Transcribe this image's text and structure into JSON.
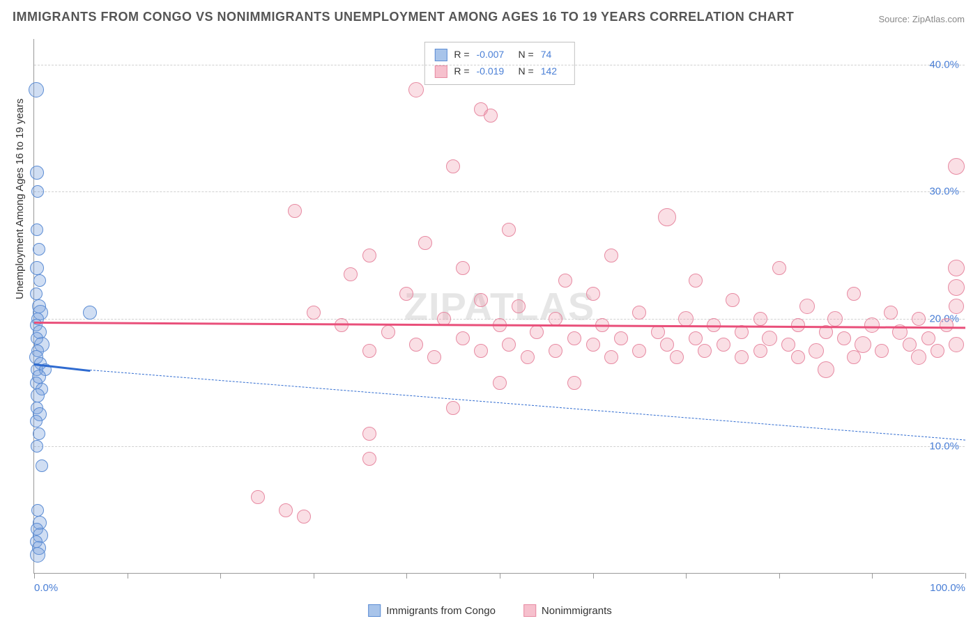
{
  "title": "IMMIGRANTS FROM CONGO VS NONIMMIGRANTS UNEMPLOYMENT AMONG AGES 16 TO 19 YEARS CORRELATION CHART",
  "source": "Source: ZipAtlas.com",
  "watermark": "ZIPATLAS",
  "y_axis_label": "Unemployment Among Ages 16 to 19 years",
  "chart": {
    "type": "scatter",
    "xlim": [
      0,
      100
    ],
    "ylim": [
      0,
      42
    ],
    "y_ticks": [
      10,
      20,
      30,
      40
    ],
    "y_tick_labels": [
      "10.0%",
      "20.0%",
      "30.0%",
      "40.0%"
    ],
    "x_ticks": [
      0,
      10,
      20,
      30,
      40,
      50,
      60,
      70,
      80,
      90,
      100
    ],
    "x_tick_labels_shown": {
      "0": "0.0%",
      "100": "100.0%"
    },
    "grid_color": "#d0d0d0",
    "background_color": "#ffffff",
    "axis_color": "#999999",
    "tick_label_color": "#4a7fd6",
    "tick_label_fontsize": 15,
    "title_fontsize": 18,
    "title_color": "#555555"
  },
  "series": [
    {
      "key": "congo",
      "label": "Immigrants from Congo",
      "fill": "rgba(120,160,220,0.35)",
      "stroke": "#5b8cd4",
      "swatch_fill": "#a8c4ea",
      "swatch_stroke": "#5b8cd4",
      "trend_color": "#2f6bd0",
      "trend_solid": {
        "x1": 0,
        "y1": 16.5,
        "x2": 6,
        "y2": 16.0
      },
      "trend_dash": {
        "x1": 6,
        "y1": 16.0,
        "x2": 100,
        "y2": 10.5
      },
      "R": "-0.007",
      "N": "74",
      "base_r": 9,
      "points": [
        {
          "x": 0.2,
          "y": 38,
          "r": 11
        },
        {
          "x": 0.3,
          "y": 31.5,
          "r": 10
        },
        {
          "x": 0.4,
          "y": 30,
          "r": 9
        },
        {
          "x": 0.3,
          "y": 27,
          "r": 9
        },
        {
          "x": 0.5,
          "y": 25.5,
          "r": 9
        },
        {
          "x": 0.3,
          "y": 24,
          "r": 10
        },
        {
          "x": 0.6,
          "y": 23,
          "r": 9
        },
        {
          "x": 0.2,
          "y": 22,
          "r": 9
        },
        {
          "x": 0.5,
          "y": 21,
          "r": 10
        },
        {
          "x": 0.7,
          "y": 20.5,
          "r": 11
        },
        {
          "x": 6.0,
          "y": 20.5,
          "r": 10
        },
        {
          "x": 0.4,
          "y": 20,
          "r": 9
        },
        {
          "x": 0.2,
          "y": 19.5,
          "r": 9
        },
        {
          "x": 0.6,
          "y": 19,
          "r": 10
        },
        {
          "x": 0.3,
          "y": 18.5,
          "r": 9
        },
        {
          "x": 0.8,
          "y": 18,
          "r": 11
        },
        {
          "x": 0.4,
          "y": 17.5,
          "r": 9
        },
        {
          "x": 0.2,
          "y": 17,
          "r": 10
        },
        {
          "x": 0.7,
          "y": 16.5,
          "r": 9
        },
        {
          "x": 0.3,
          "y": 16,
          "r": 9
        },
        {
          "x": 1.2,
          "y": 16,
          "r": 9
        },
        {
          "x": 0.5,
          "y": 15.5,
          "r": 10
        },
        {
          "x": 0.2,
          "y": 15,
          "r": 9
        },
        {
          "x": 0.8,
          "y": 14.5,
          "r": 9
        },
        {
          "x": 0.4,
          "y": 14,
          "r": 10
        },
        {
          "x": 0.3,
          "y": 13,
          "r": 9
        },
        {
          "x": 0.6,
          "y": 12.5,
          "r": 10
        },
        {
          "x": 0.2,
          "y": 12,
          "r": 9
        },
        {
          "x": 0.5,
          "y": 11,
          "r": 9
        },
        {
          "x": 0.3,
          "y": 10,
          "r": 9
        },
        {
          "x": 0.8,
          "y": 8.5,
          "r": 9
        },
        {
          "x": 0.4,
          "y": 5,
          "r": 9
        },
        {
          "x": 0.6,
          "y": 4,
          "r": 10
        },
        {
          "x": 0.3,
          "y": 3.5,
          "r": 9
        },
        {
          "x": 0.7,
          "y": 3,
          "r": 11
        },
        {
          "x": 0.2,
          "y": 2.5,
          "r": 9
        },
        {
          "x": 0.5,
          "y": 2,
          "r": 10
        },
        {
          "x": 0.4,
          "y": 1.5,
          "r": 11
        }
      ]
    },
    {
      "key": "nonimm",
      "label": "Nonimmigrants",
      "fill": "rgba(240,150,170,0.30)",
      "stroke": "#e78aa2",
      "swatch_fill": "#f6c0cd",
      "swatch_stroke": "#e78aa2",
      "trend_color": "#e94f7a",
      "trend_solid": {
        "x1": 0,
        "y1": 19.8,
        "x2": 100,
        "y2": 19.4
      },
      "trend_dash": null,
      "R": "-0.019",
      "N": "142",
      "base_r": 10,
      "points": [
        {
          "x": 41,
          "y": 38,
          "r": 11
        },
        {
          "x": 48,
          "y": 36.5,
          "r": 10
        },
        {
          "x": 49,
          "y": 36,
          "r": 10
        },
        {
          "x": 99,
          "y": 32,
          "r": 12
        },
        {
          "x": 45,
          "y": 32,
          "r": 10
        },
        {
          "x": 28,
          "y": 28.5,
          "r": 10
        },
        {
          "x": 68,
          "y": 28,
          "r": 13
        },
        {
          "x": 51,
          "y": 27,
          "r": 10
        },
        {
          "x": 42,
          "y": 26,
          "r": 10
        },
        {
          "x": 36,
          "y": 25,
          "r": 10
        },
        {
          "x": 62,
          "y": 25,
          "r": 10
        },
        {
          "x": 99,
          "y": 24,
          "r": 12
        },
        {
          "x": 46,
          "y": 24,
          "r": 10
        },
        {
          "x": 80,
          "y": 24,
          "r": 10
        },
        {
          "x": 34,
          "y": 23.5,
          "r": 10
        },
        {
          "x": 57,
          "y": 23,
          "r": 10
        },
        {
          "x": 71,
          "y": 23,
          "r": 10
        },
        {
          "x": 99,
          "y": 22.5,
          "r": 12
        },
        {
          "x": 40,
          "y": 22,
          "r": 10
        },
        {
          "x": 60,
          "y": 22,
          "r": 10
        },
        {
          "x": 88,
          "y": 22,
          "r": 10
        },
        {
          "x": 48,
          "y": 21.5,
          "r": 10
        },
        {
          "x": 75,
          "y": 21.5,
          "r": 10
        },
        {
          "x": 83,
          "y": 21,
          "r": 11
        },
        {
          "x": 99,
          "y": 21,
          "r": 11
        },
        {
          "x": 30,
          "y": 20.5,
          "r": 10
        },
        {
          "x": 52,
          "y": 21,
          "r": 10
        },
        {
          "x": 65,
          "y": 20.5,
          "r": 10
        },
        {
          "x": 92,
          "y": 20.5,
          "r": 10
        },
        {
          "x": 44,
          "y": 20,
          "r": 10
        },
        {
          "x": 56,
          "y": 20,
          "r": 10
        },
        {
          "x": 70,
          "y": 20,
          "r": 11
        },
        {
          "x": 78,
          "y": 20,
          "r": 10
        },
        {
          "x": 86,
          "y": 20,
          "r": 11
        },
        {
          "x": 95,
          "y": 20,
          "r": 10
        },
        {
          "x": 33,
          "y": 19.5,
          "r": 10
        },
        {
          "x": 50,
          "y": 19.5,
          "r": 10
        },
        {
          "x": 61,
          "y": 19.5,
          "r": 10
        },
        {
          "x": 73,
          "y": 19.5,
          "r": 10
        },
        {
          "x": 82,
          "y": 19.5,
          "r": 10
        },
        {
          "x": 90,
          "y": 19.5,
          "r": 11
        },
        {
          "x": 98,
          "y": 19.5,
          "r": 10
        },
        {
          "x": 38,
          "y": 19,
          "r": 10
        },
        {
          "x": 54,
          "y": 19,
          "r": 10
        },
        {
          "x": 67,
          "y": 19,
          "r": 10
        },
        {
          "x": 76,
          "y": 19,
          "r": 10
        },
        {
          "x": 85,
          "y": 19,
          "r": 10
        },
        {
          "x": 93,
          "y": 19,
          "r": 11
        },
        {
          "x": 46,
          "y": 18.5,
          "r": 10
        },
        {
          "x": 58,
          "y": 18.5,
          "r": 10
        },
        {
          "x": 63,
          "y": 18.5,
          "r": 10
        },
        {
          "x": 71,
          "y": 18.5,
          "r": 10
        },
        {
          "x": 79,
          "y": 18.5,
          "r": 11
        },
        {
          "x": 87,
          "y": 18.5,
          "r": 10
        },
        {
          "x": 96,
          "y": 18.5,
          "r": 10
        },
        {
          "x": 41,
          "y": 18,
          "r": 10
        },
        {
          "x": 51,
          "y": 18,
          "r": 10
        },
        {
          "x": 60,
          "y": 18,
          "r": 10
        },
        {
          "x": 68,
          "y": 18,
          "r": 10
        },
        {
          "x": 74,
          "y": 18,
          "r": 10
        },
        {
          "x": 81,
          "y": 18,
          "r": 10
        },
        {
          "x": 89,
          "y": 18,
          "r": 12
        },
        {
          "x": 94,
          "y": 18,
          "r": 10
        },
        {
          "x": 99,
          "y": 18,
          "r": 11
        },
        {
          "x": 36,
          "y": 17.5,
          "r": 10
        },
        {
          "x": 48,
          "y": 17.5,
          "r": 10
        },
        {
          "x": 56,
          "y": 17.5,
          "r": 10
        },
        {
          "x": 65,
          "y": 17.5,
          "r": 10
        },
        {
          "x": 72,
          "y": 17.5,
          "r": 10
        },
        {
          "x": 78,
          "y": 17.5,
          "r": 10
        },
        {
          "x": 84,
          "y": 17.5,
          "r": 11
        },
        {
          "x": 91,
          "y": 17.5,
          "r": 10
        },
        {
          "x": 97,
          "y": 17.5,
          "r": 10
        },
        {
          "x": 43,
          "y": 17,
          "r": 10
        },
        {
          "x": 53,
          "y": 17,
          "r": 10
        },
        {
          "x": 62,
          "y": 17,
          "r": 10
        },
        {
          "x": 69,
          "y": 17,
          "r": 10
        },
        {
          "x": 76,
          "y": 17,
          "r": 10
        },
        {
          "x": 82,
          "y": 17,
          "r": 10
        },
        {
          "x": 88,
          "y": 17,
          "r": 10
        },
        {
          "x": 95,
          "y": 17,
          "r": 11
        },
        {
          "x": 85,
          "y": 16,
          "r": 12
        },
        {
          "x": 50,
          "y": 15,
          "r": 10
        },
        {
          "x": 58,
          "y": 15,
          "r": 10
        },
        {
          "x": 45,
          "y": 13,
          "r": 10
        },
        {
          "x": 36,
          "y": 11,
          "r": 10
        },
        {
          "x": 36,
          "y": 9,
          "r": 10
        },
        {
          "x": 24,
          "y": 6,
          "r": 10
        },
        {
          "x": 27,
          "y": 5,
          "r": 10
        },
        {
          "x": 29,
          "y": 4.5,
          "r": 10
        }
      ]
    }
  ],
  "legend": {
    "items": [
      {
        "label": "Immigrants from Congo",
        "series": "congo"
      },
      {
        "label": "Nonimmigrants",
        "series": "nonimm"
      }
    ]
  }
}
